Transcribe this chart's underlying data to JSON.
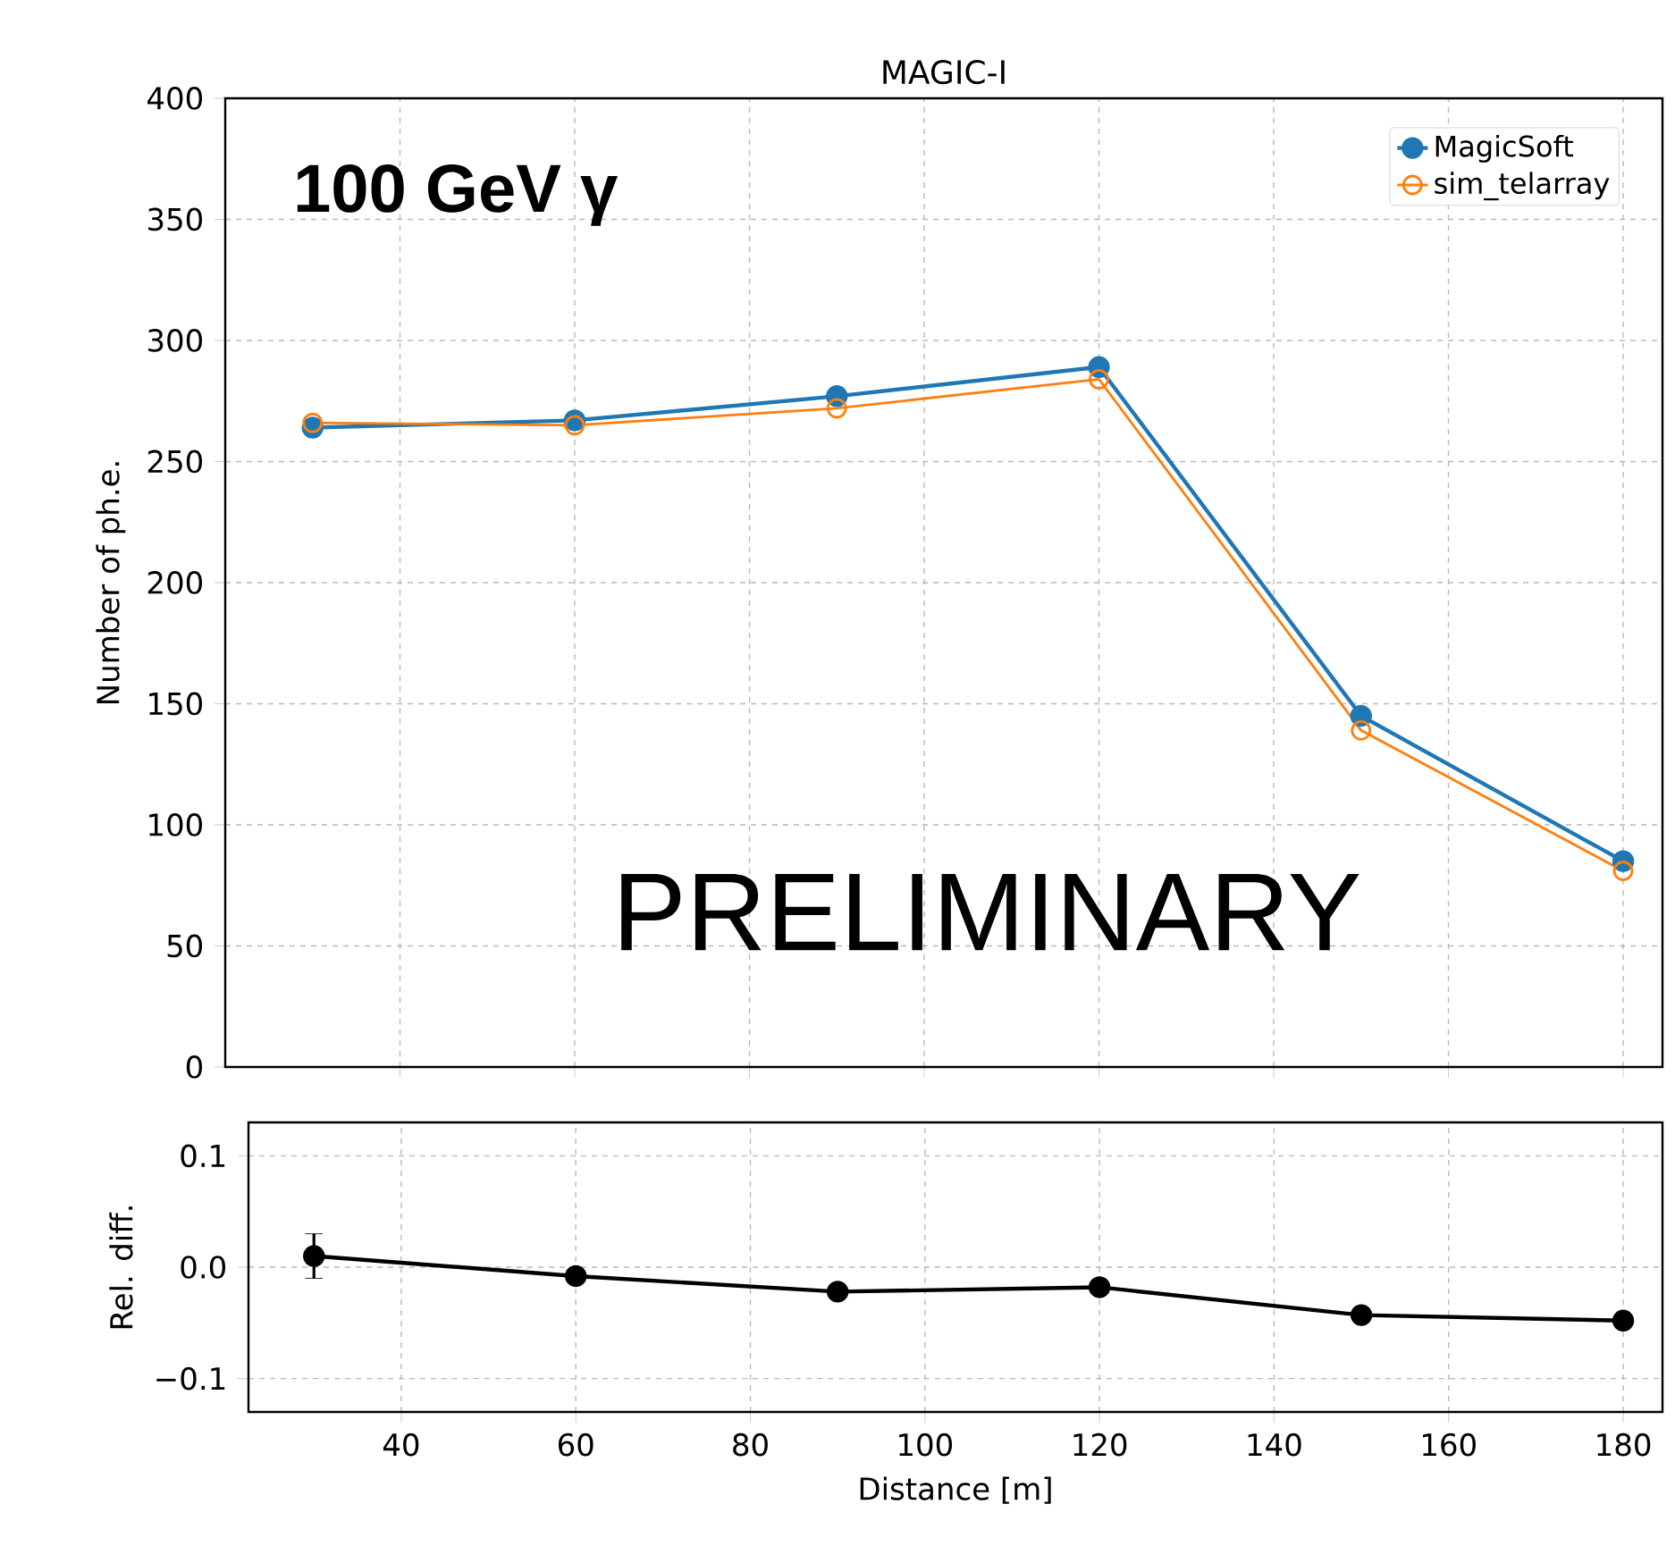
{
  "chart_data": [
    {
      "type": "line",
      "title": "MAGIC-I",
      "ylabel": "Number of ph.e.",
      "x": [
        30,
        60,
        90,
        120,
        150,
        180
      ],
      "series": [
        {
          "name": "MagicSoft",
          "color": "#1f77b4",
          "values": [
            264,
            267,
            277,
            289,
            145,
            85
          ]
        },
        {
          "name": "sim_telarray",
          "color": "#ff7f0e",
          "values": [
            266,
            265,
            272,
            284,
            139,
            81
          ]
        }
      ],
      "xlim": [
        20,
        184.5
      ],
      "ylim": [
        0,
        400
      ],
      "xticks": [
        40,
        60,
        80,
        100,
        120,
        140,
        160,
        180
      ],
      "yticks": [
        0,
        50,
        100,
        150,
        200,
        250,
        300,
        350,
        400
      ],
      "annotations": [
        "100 GeV γ",
        "PRELIMINARY"
      ],
      "grid": true,
      "legend": "top right",
      "marker": "circle",
      "tick_labels": "y"
    },
    {
      "type": "line",
      "xlabel": "Distance [m]",
      "ylabel": "Rel. diff.",
      "x": [
        30,
        60,
        90,
        120,
        150,
        180
      ],
      "series": [
        {
          "color": "#000000",
          "values": [
            0.01,
            -0.008,
            -0.022,
            -0.018,
            -0.043,
            -0.048
          ],
          "errors": [
            0.02,
            null,
            null,
            null,
            null,
            null
          ]
        }
      ],
      "xlim": [
        22.5,
        184.5
      ],
      "ylim": [
        -0.13,
        0.13
      ],
      "xticks": [
        40,
        60,
        80,
        100,
        120,
        140,
        160,
        180
      ],
      "yticks": [
        {
          "value": -0.1,
          "label": "−0.1"
        },
        {
          "value": 0,
          "label": "0.0"
        },
        {
          "value": 0.1,
          "label": "0.1"
        }
      ],
      "grid": true,
      "marker": "circle"
    }
  ]
}
